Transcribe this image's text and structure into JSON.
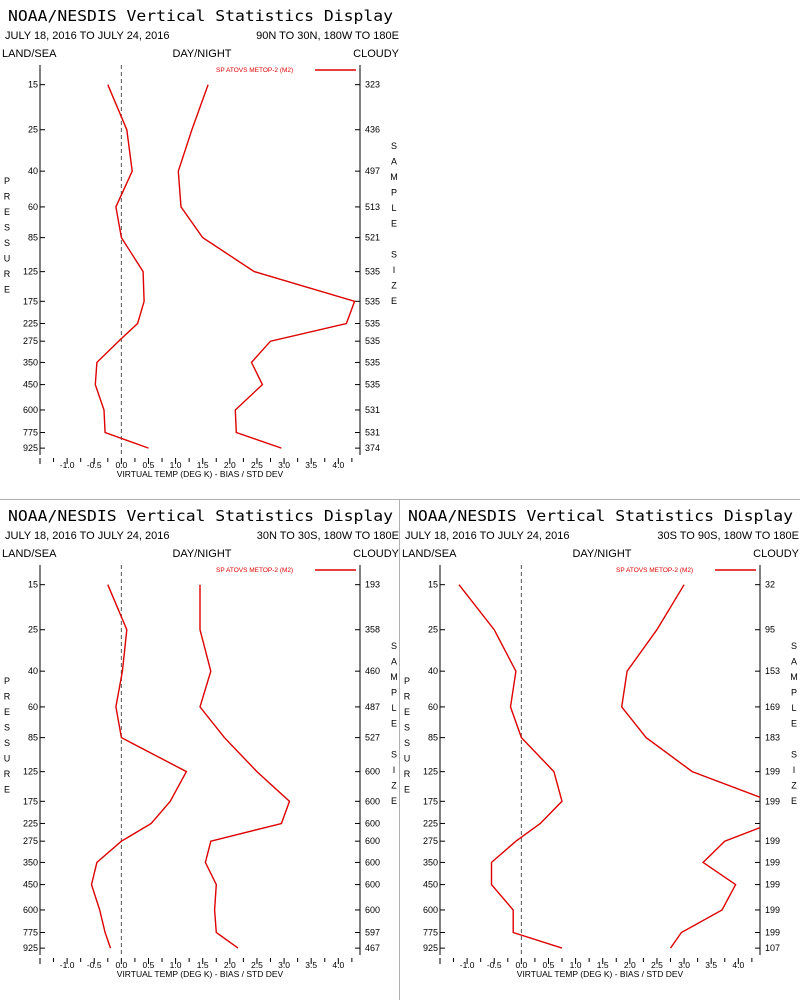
{
  "colors": {
    "series": "#dd0000",
    "axis": "#000000",
    "zero_line": "#555555",
    "divider": "#b0b0b0"
  },
  "common": {
    "title": "NOAA/NESDIS Vertical Statistics Display",
    "date_range": "JULY 18, 2016 TO JULY 24, 2016",
    "land_sea_label": "LAND/SEA",
    "day_night_label": "DAY/NIGHT",
    "cloud_label": "CLOUDY",
    "xlabel": "VIRTUAL TEMP (DEG K) - BIAS / STD DEV",
    "ylabel": "PRESSURE",
    "y2label": "SAMPLE SIZE",
    "legend_label": "SP ATOVS METOP-2 (M2)",
    "pressure_levels": [
      15,
      25,
      40,
      60,
      85,
      125,
      175,
      225,
      275,
      350,
      450,
      600,
      775,
      925
    ],
    "x_ticks": [
      "-1.0",
      "-0.5",
      "0.0",
      "0.5",
      "1.0",
      "1.5",
      "2.0",
      "2.5",
      "3.0",
      "3.5",
      "4.0"
    ]
  },
  "chart_data": [
    {
      "type": "line",
      "region": "90N TO 30N, 180W TO 180E",
      "xlim": [
        -1.5,
        4.4
      ],
      "y": [
        15,
        25,
        40,
        60,
        85,
        125,
        175,
        225,
        275,
        350,
        450,
        600,
        775,
        925
      ],
      "sample_size": [
        "323",
        "436",
        "497",
        "513",
        "521",
        "535",
        "535",
        "535",
        "535",
        "535",
        "535",
        "531",
        "531",
        "374"
      ],
      "series": [
        {
          "name": "Bias",
          "values": [
            -0.25,
            0.1,
            0.2,
            -0.1,
            0.0,
            0.4,
            0.42,
            0.3,
            -0.05,
            -0.45,
            -0.48,
            -0.32,
            -0.3,
            0.5
          ]
        },
        {
          "name": "Std Dev",
          "values": [
            1.6,
            1.3,
            1.05,
            1.1,
            1.5,
            2.45,
            4.3,
            4.15,
            2.75,
            2.4,
            2.6,
            2.1,
            2.12,
            2.95
          ]
        }
      ]
    },
    {
      "type": "line",
      "region": "30N TO 30S, 180W TO 180E",
      "xlim": [
        -1.5,
        4.4
      ],
      "y": [
        15,
        25,
        40,
        60,
        85,
        125,
        175,
        225,
        275,
        350,
        450,
        600,
        775,
        925
      ],
      "sample_size": [
        "193",
        "358",
        "460",
        "487",
        "527",
        "600",
        "600",
        "600",
        "600",
        "600",
        "600",
        "600",
        "597",
        "467"
      ],
      "series": [
        {
          "name": "Bias",
          "values": [
            -0.25,
            0.1,
            0.02,
            -0.1,
            0.0,
            1.2,
            0.9,
            0.55,
            0.0,
            -0.45,
            -0.55,
            -0.4,
            -0.3,
            -0.2
          ]
        },
        {
          "name": "Std Dev",
          "values": [
            1.45,
            1.45,
            1.65,
            1.45,
            1.9,
            2.5,
            3.1,
            2.95,
            1.65,
            1.55,
            1.75,
            1.72,
            1.75,
            2.15
          ]
        }
      ]
    },
    {
      "type": "line",
      "region": "30S TO 90S, 180W TO 180E",
      "xlim": [
        -1.5,
        4.4
      ],
      "y": [
        15,
        25,
        40,
        60,
        85,
        125,
        175,
        225,
        275,
        350,
        450,
        600,
        775,
        925
      ],
      "sample_size": [
        "32",
        "95",
        "153",
        "169",
        "183",
        "199",
        "199",
        "",
        "199",
        "199",
        "199",
        "199",
        "199",
        "107"
      ],
      "series": [
        {
          "name": "Bias",
          "values": [
            -1.15,
            -0.5,
            -0.1,
            -0.2,
            0.0,
            0.6,
            0.75,
            0.35,
            -0.1,
            -0.55,
            -0.55,
            -0.15,
            -0.15,
            0.75
          ]
        },
        {
          "name": "Std Dev",
          "values": [
            3.0,
            2.5,
            1.95,
            1.85,
            2.3,
            3.15,
            4.6,
            4.6,
            3.75,
            3.35,
            3.95,
            3.7,
            2.95,
            2.75
          ]
        }
      ]
    }
  ]
}
